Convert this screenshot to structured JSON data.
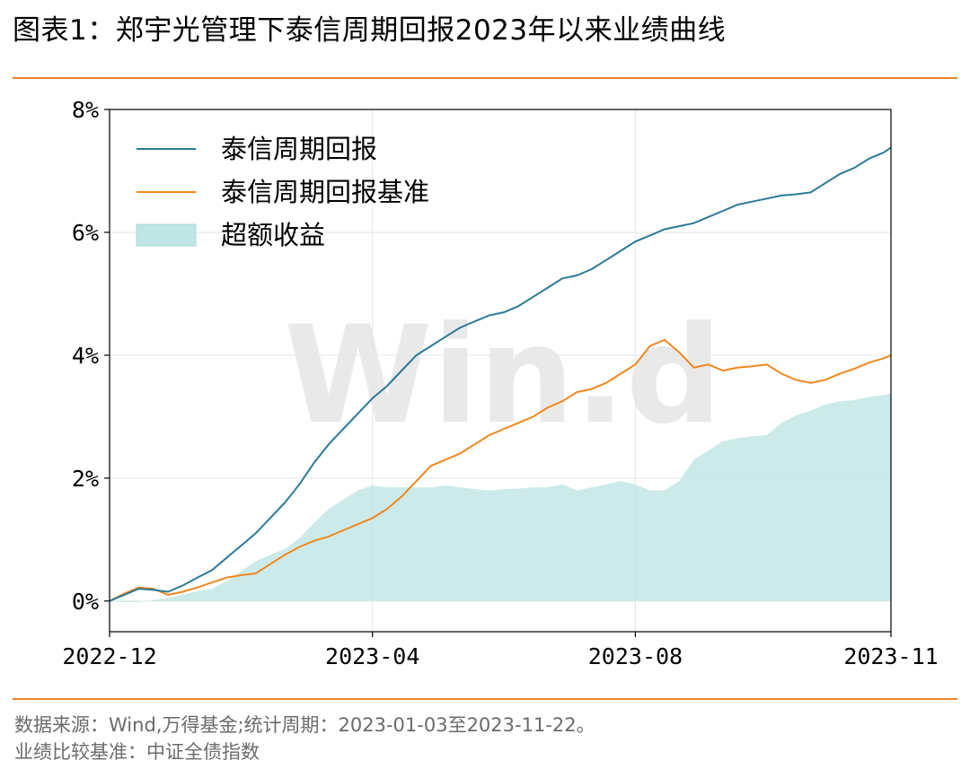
{
  "title": "图表1：郑宇光管理下泰信周期回报2023年以来业绩曲线",
  "footer": {
    "line1": "数据来源：Wind,万得基金;统计周期：2023-01-03至2023-11-22。",
    "line2": "业绩比较基准：中证全债指数"
  },
  "watermark": "Win.d",
  "colors": {
    "fund": "#2b7a98",
    "benchmark": "#f0871f",
    "excess": "#bfe5e5",
    "rule": "#e9852f"
  },
  "chart_data": {
    "type": "line",
    "title": "",
    "xlabel": "",
    "ylabel": "",
    "ylim": [
      -0.5,
      8
    ],
    "yticks": [
      0,
      2,
      4,
      6,
      8
    ],
    "ytick_labels": [
      "0%",
      "2%",
      "4%",
      "6%",
      "8%"
    ],
    "xlim": [
      0,
      10.7
    ],
    "xticks": [
      0,
      3.6,
      7.2,
      10.7
    ],
    "xtick_labels": [
      "2022-12",
      "2023-04",
      "2023-08",
      "2023-11"
    ],
    "grid": true,
    "legend_position": "top-left",
    "x": [
      0,
      0.2,
      0.4,
      0.6,
      0.8,
      1.0,
      1.2,
      1.4,
      1.6,
      1.8,
      2.0,
      2.2,
      2.4,
      2.6,
      2.8,
      3.0,
      3.2,
      3.4,
      3.6,
      3.8,
      4.0,
      4.2,
      4.4,
      4.6,
      4.8,
      5.0,
      5.2,
      5.4,
      5.6,
      5.8,
      6.0,
      6.2,
      6.4,
      6.6,
      6.8,
      7.0,
      7.2,
      7.4,
      7.6,
      7.8,
      8.0,
      8.2,
      8.4,
      8.6,
      8.8,
      9.0,
      9.2,
      9.4,
      9.6,
      9.8,
      10.0,
      10.2,
      10.4,
      10.6,
      10.7
    ],
    "series": [
      {
        "name": "泰信周期回报",
        "type": "line",
        "values": [
          0.0,
          0.1,
          0.2,
          0.18,
          0.15,
          0.25,
          0.38,
          0.5,
          0.7,
          0.9,
          1.1,
          1.35,
          1.6,
          1.9,
          2.25,
          2.55,
          2.8,
          3.05,
          3.3,
          3.5,
          3.75,
          4.0,
          4.15,
          4.3,
          4.45,
          4.55,
          4.65,
          4.7,
          4.8,
          4.95,
          5.1,
          5.25,
          5.3,
          5.4,
          5.55,
          5.7,
          5.85,
          5.95,
          6.05,
          6.1,
          6.15,
          6.25,
          6.35,
          6.45,
          6.5,
          6.55,
          6.6,
          6.62,
          6.65,
          6.8,
          6.95,
          7.05,
          7.2,
          7.3,
          7.38
        ]
      },
      {
        "name": "泰信周期回报基准",
        "type": "line",
        "values": [
          0.0,
          0.12,
          0.22,
          0.2,
          0.1,
          0.15,
          0.22,
          0.3,
          0.38,
          0.42,
          0.45,
          0.6,
          0.75,
          0.88,
          0.98,
          1.05,
          1.15,
          1.25,
          1.35,
          1.5,
          1.7,
          1.95,
          2.2,
          2.3,
          2.4,
          2.55,
          2.7,
          2.8,
          2.9,
          3.0,
          3.15,
          3.25,
          3.4,
          3.45,
          3.55,
          3.7,
          3.85,
          4.15,
          4.25,
          4.05,
          3.8,
          3.85,
          3.75,
          3.8,
          3.82,
          3.85,
          3.7,
          3.6,
          3.55,
          3.6,
          3.7,
          3.78,
          3.88,
          3.95,
          4.0
        ]
      },
      {
        "name": "超额收益",
        "type": "area",
        "values": [
          0.0,
          -0.02,
          -0.02,
          0.02,
          0.05,
          0.1,
          0.16,
          0.2,
          0.32,
          0.48,
          0.65,
          0.75,
          0.85,
          1.02,
          1.27,
          1.5,
          1.65,
          1.8,
          1.88,
          1.85,
          1.85,
          1.85,
          1.85,
          1.88,
          1.85,
          1.82,
          1.8,
          1.82,
          1.83,
          1.85,
          1.85,
          1.9,
          1.8,
          1.85,
          1.9,
          1.95,
          1.9,
          1.8,
          1.8,
          1.95,
          2.3,
          2.45,
          2.6,
          2.65,
          2.68,
          2.7,
          2.9,
          3.02,
          3.1,
          3.2,
          3.25,
          3.27,
          3.32,
          3.35,
          3.38
        ]
      }
    ]
  }
}
